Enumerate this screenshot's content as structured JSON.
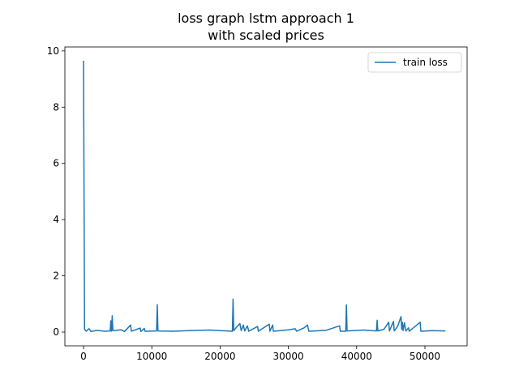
{
  "chart_data": {
    "type": "line",
    "title": [
      "loss graph lstm approach 1",
      "with scaled prices"
    ],
    "x": [
      0,
      150,
      400,
      800,
      1100,
      2000,
      3000,
      3900,
      4000,
      4100,
      4200,
      4300,
      5500,
      6000,
      6900,
      7000,
      8300,
      8400,
      8900,
      9000,
      10700,
      10800,
      10900,
      13000,
      16500,
      18500,
      21800,
      21900,
      22000,
      22500,
      22900,
      23100,
      23400,
      23600,
      24000,
      24200,
      25500,
      25600,
      27200,
      27300,
      27700,
      27800,
      30000,
      31000,
      31200,
      32300,
      32800,
      33000,
      35500,
      37500,
      37600,
      38400,
      38500,
      38600,
      41000,
      42900,
      43000,
      43100,
      44000,
      44700,
      44800,
      45400,
      45500,
      46000,
      46500,
      46600,
      46700,
      46800,
      47000,
      47200,
      47600,
      47700,
      49300,
      49400,
      51000,
      53000
    ],
    "series": [
      {
        "name": "train loss",
        "color": "#1f77b4",
        "values": [
          9.65,
          0.1,
          0.03,
          0.12,
          0.02,
          0.06,
          0.03,
          0.04,
          0.4,
          0.03,
          0.58,
          0.05,
          0.08,
          0.02,
          0.25,
          0.03,
          0.14,
          0.02,
          0.13,
          0.03,
          0.04,
          0.98,
          0.04,
          0.03,
          0.06,
          0.07,
          0.03,
          1.17,
          0.05,
          0.2,
          0.3,
          0.05,
          0.25,
          0.04,
          0.22,
          0.03,
          0.2,
          0.03,
          0.28,
          0.03,
          0.25,
          0.03,
          0.08,
          0.12,
          0.03,
          0.15,
          0.25,
          0.03,
          0.06,
          0.22,
          0.03,
          0.03,
          0.97,
          0.04,
          0.07,
          0.04,
          0.42,
          0.04,
          0.1,
          0.35,
          0.04,
          0.38,
          0.04,
          0.2,
          0.55,
          0.1,
          0.35,
          0.05,
          0.33,
          0.04,
          0.15,
          0.03,
          0.35,
          0.03,
          0.05,
          0.04
        ]
      }
    ],
    "xlim": [
      -2732,
      56176
    ],
    "ylim": [
      -0.49,
      10.14
    ],
    "xticks": [
      0,
      10000,
      20000,
      30000,
      40000,
      50000
    ],
    "yticks": [
      0,
      2,
      4,
      6,
      8,
      10
    ],
    "legend": "upper right"
  }
}
